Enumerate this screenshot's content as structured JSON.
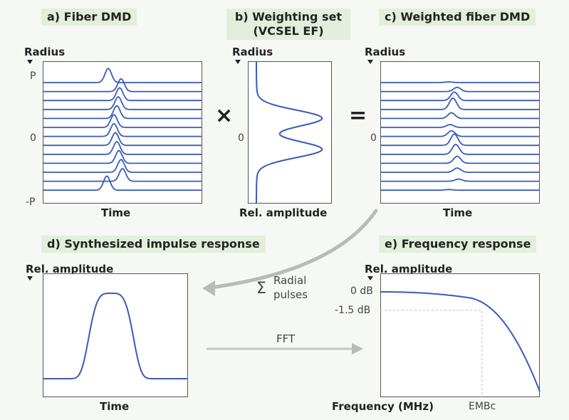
{
  "panels": {
    "a": {
      "title": "a) Fiber DMD",
      "axis_label": "Radius",
      "tick_top": "P",
      "tick_mid": "0",
      "tick_bot": "-P",
      "x_label": "Time"
    },
    "b": {
      "title_line1": "b) Weighting set",
      "title_line2": "(VCSEL EF)",
      "axis_label": "Radius",
      "tick_mid": "0",
      "x_label": "Rel. amplitude"
    },
    "c": {
      "title": "c) Weighted fiber DMD",
      "axis_label": "Radius",
      "tick_mid": "0",
      "x_label": "Time"
    },
    "d": {
      "title": "d) Synthesized impulse response",
      "axis_label": "Rel. amplitude",
      "x_label": "Time"
    },
    "e": {
      "title": "e) Frequency response",
      "axis_label": "Rel. amplitude",
      "tick_0db": "0 dB",
      "tick_15db": "-1.5 dB",
      "x_label": "Frequency (MHz)",
      "embc": "EMBc"
    }
  },
  "operators": {
    "times": "×",
    "equals": "="
  },
  "arrows": {
    "sum_symbol": "Σ",
    "sum_label_line1": "Radial",
    "sum_label_line2": "pulses",
    "fft_label": "FFT"
  },
  "colors": {
    "trace": "#3a5bb8",
    "label_bg": "#e3eedc",
    "arrow": "#b9bcb6"
  }
}
